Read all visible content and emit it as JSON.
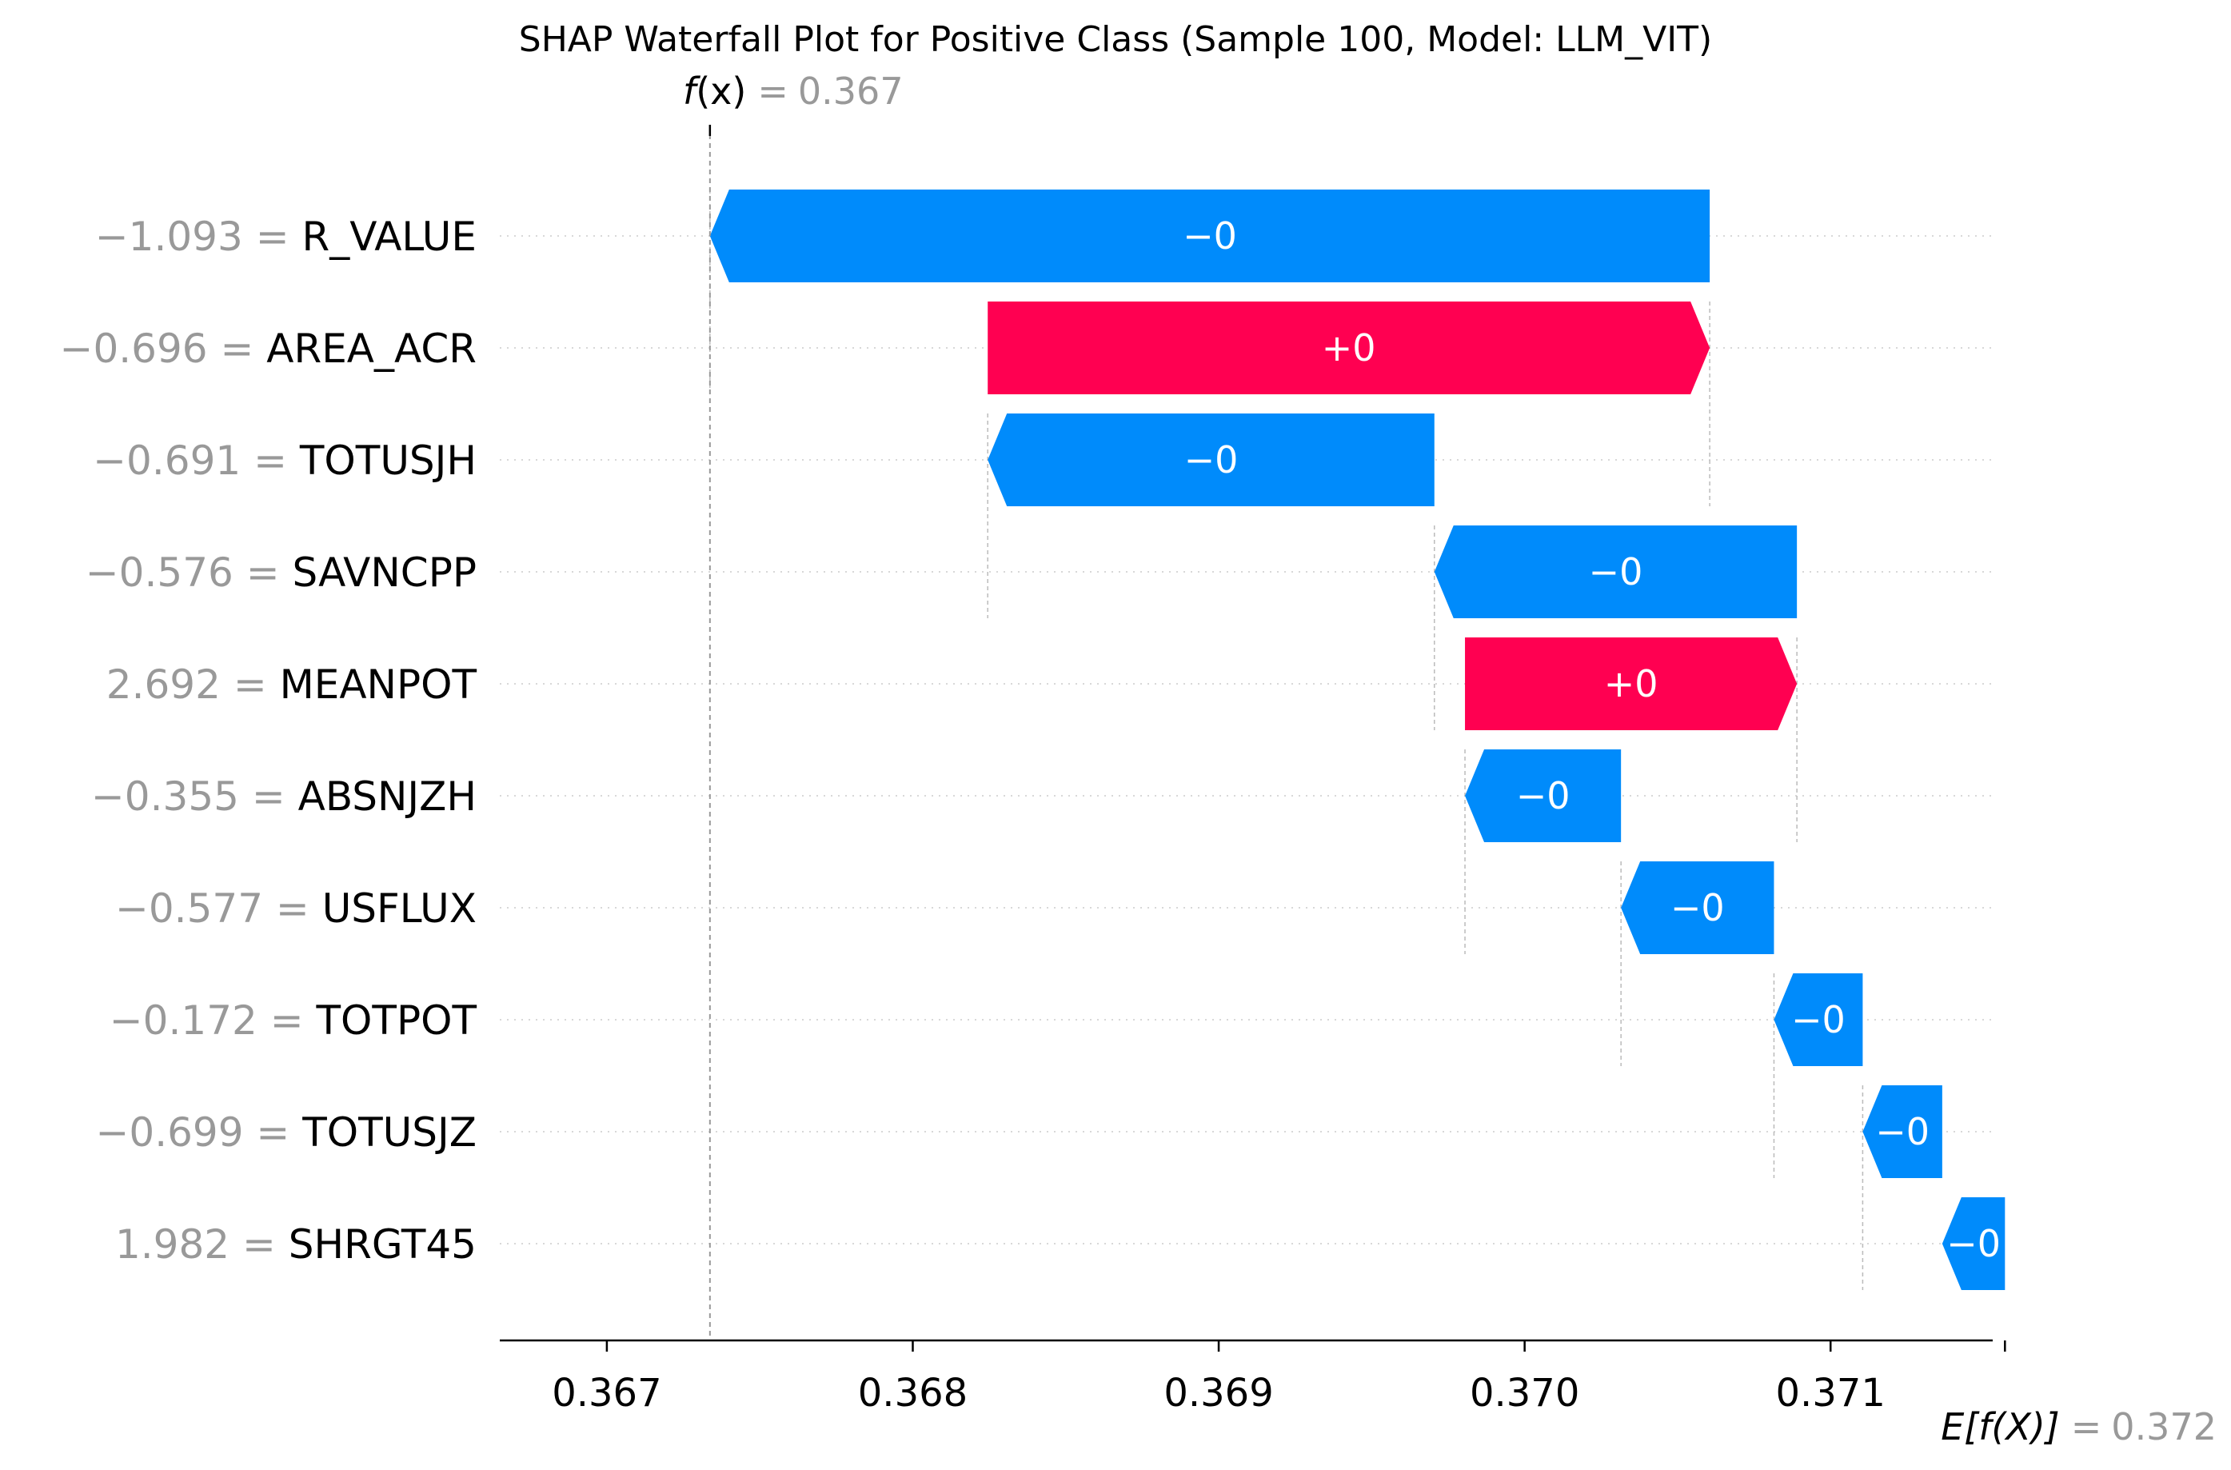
{
  "chart_data": {
    "type": "waterfall",
    "title": "SHAP Waterfall Plot for Positive Class (Sample 100, Model: LLM_VIT)",
    "fx": {
      "label_italic": "f",
      "label_rest": "(x)",
      "eq": "=",
      "value": 0.367,
      "value_text": "0.367"
    },
    "efx": {
      "label": "E[f(X)]",
      "eq": "=",
      "value": 0.372,
      "value_text": "0.372"
    },
    "xlim": [
      0.36665,
      0.37153
    ],
    "xticks": [
      {
        "value": 0.367,
        "label": "0.367"
      },
      {
        "value": 0.368,
        "label": "0.368"
      },
      {
        "value": 0.369,
        "label": "0.369"
      },
      {
        "value": 0.37,
        "label": "0.370"
      },
      {
        "value": 0.371,
        "label": "0.371"
      }
    ],
    "colors": {
      "positive": "#ff0051",
      "negative": "#008bfb",
      "text_gray": "#999999"
    },
    "features": [
      {
        "name": "R_VALUE",
        "value_text": "−1.093",
        "start": 0.370605,
        "end": 0.367337,
        "label": "−0"
      },
      {
        "name": "AREA_ACR",
        "value_text": "−0.696",
        "start": 0.368245,
        "end": 0.370605,
        "label": "+0"
      },
      {
        "name": "TOTUSJH",
        "value_text": "−0.691",
        "start": 0.369705,
        "end": 0.368245,
        "label": "−0"
      },
      {
        "name": "SAVNCPP",
        "value_text": "−0.576",
        "start": 0.37089,
        "end": 0.369705,
        "label": "−0"
      },
      {
        "name": "MEANPOT",
        "value_text": "2.692",
        "start": 0.369805,
        "end": 0.37089,
        "label": "+0"
      },
      {
        "name": "ABSNJZH",
        "value_text": "−0.355",
        "start": 0.370315,
        "end": 0.369805,
        "label": "−0"
      },
      {
        "name": "USFLUX",
        "value_text": "−0.577",
        "start": 0.370815,
        "end": 0.370315,
        "label": "−0"
      },
      {
        "name": "TOTPOT",
        "value_text": "−0.172",
        "start": 0.371105,
        "end": 0.370815,
        "label": "−0"
      },
      {
        "name": "TOTUSJZ",
        "value_text": "−0.699",
        "start": 0.371365,
        "end": 0.371105,
        "label": "−0"
      },
      {
        "name": "SHRGT45",
        "value_text": "1.982",
        "start": 0.37157,
        "end": 0.371365,
        "label": "−0"
      }
    ]
  }
}
